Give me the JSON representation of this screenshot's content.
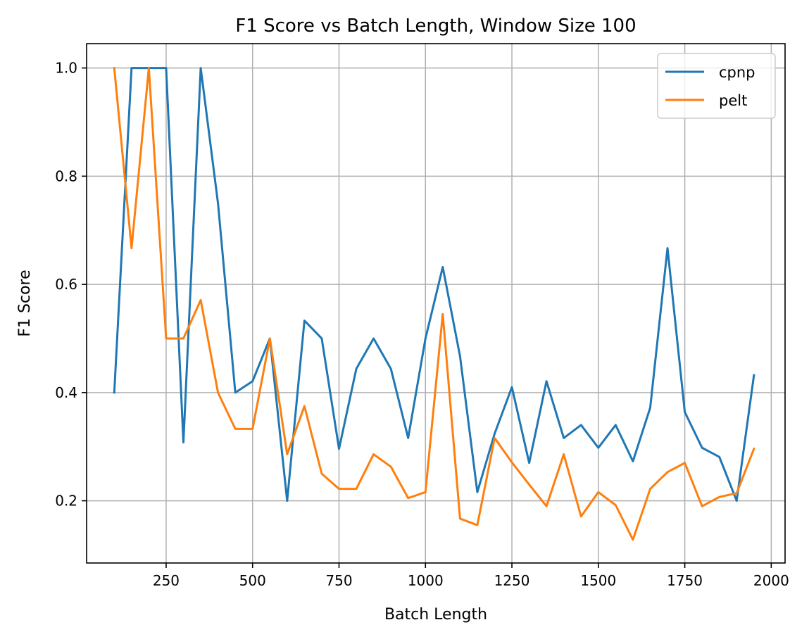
{
  "chart_data": {
    "type": "line",
    "title": "F1 Score vs Batch Length, Window Size 100",
    "xlabel": "Batch Length",
    "ylabel": "F1 Score",
    "xlim": [
      20,
      2040
    ],
    "ylim": [
      0.085,
      1.045
    ],
    "xticks": [
      250,
      500,
      750,
      1000,
      1250,
      1500,
      1750,
      2000
    ],
    "yticks": [
      0.2,
      0.4,
      0.6,
      0.8,
      1.0
    ],
    "xtick_labels": [
      "250",
      "500",
      "750",
      "1000",
      "1250",
      "1500",
      "1750",
      "2000"
    ],
    "ytick_labels": [
      "0.2",
      "0.4",
      "0.6",
      "0.8",
      "1.0"
    ],
    "grid": true,
    "legend_position": "top-right",
    "x": [
      100,
      150,
      200,
      250,
      300,
      350,
      400,
      450,
      500,
      550,
      600,
      650,
      700,
      750,
      800,
      850,
      900,
      950,
      1000,
      1050,
      1100,
      1150,
      1200,
      1250,
      1300,
      1350,
      1400,
      1450,
      1500,
      1550,
      1600,
      1650,
      1700,
      1750,
      1800,
      1850,
      1900,
      1950
    ],
    "series": [
      {
        "name": "cpnp",
        "color": "#1f77b4",
        "values": [
          0.4,
          1.0,
          1.0,
          1.0,
          0.308,
          1.0,
          0.75,
          0.4,
          0.421,
          0.5,
          0.2,
          0.533,
          0.5,
          0.296,
          0.444,
          0.5,
          0.444,
          0.316,
          0.5,
          0.632,
          0.467,
          0.216,
          0.324,
          0.41,
          0.27,
          0.421,
          0.316,
          0.34,
          0.298,
          0.34,
          0.273,
          0.372,
          0.667,
          0.364,
          0.298,
          0.281,
          0.2,
          0.432
        ]
      },
      {
        "name": "pelt",
        "color": "#ff7f0e",
        "values": [
          1.0,
          0.667,
          1.0,
          0.5,
          0.5,
          0.571,
          0.4,
          0.333,
          0.333,
          0.5,
          0.286,
          0.375,
          0.25,
          0.222,
          0.222,
          0.286,
          0.263,
          0.205,
          0.216,
          0.545,
          0.167,
          0.155,
          0.316,
          0.271,
          0.23,
          0.19,
          0.286,
          0.171,
          0.216,
          0.192,
          0.128,
          0.222,
          0.253,
          0.27,
          0.19,
          0.207,
          0.214,
          0.296
        ]
      }
    ]
  }
}
